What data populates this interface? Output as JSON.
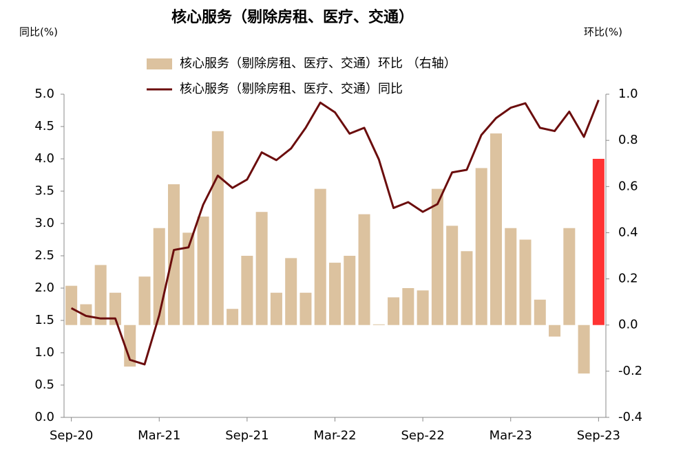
{
  "chart_data": {
    "type": "bar-line",
    "title": "核心服务（剔除房租、医疗、交通）",
    "ylabel": "同比(%)",
    "y2label": "环比(%)",
    "categories": [
      "Sep-20",
      null,
      null,
      null,
      null,
      null,
      "Mar-21",
      null,
      null,
      null,
      null,
      null,
      "Sep-21",
      null,
      null,
      null,
      null,
      null,
      "Mar-22",
      null,
      null,
      null,
      null,
      null,
      "Sep-22",
      null,
      null,
      null,
      null,
      null,
      "Mar-23",
      null,
      null,
      null,
      null,
      null,
      "Sep-23"
    ],
    "series": [
      {
        "name": "核心服务（剔除房租、医疗、交通）环比 （右轴）",
        "type": "bar",
        "axis": "y2",
        "colors": [
          "#dcc29f",
          "#dcc29f",
          "#dcc29f",
          "#dcc29f",
          "#dcc29f",
          "#dcc29f",
          "#dcc29f",
          "#dcc29f",
          "#dcc29f",
          "#dcc29f",
          "#dcc29f",
          "#dcc29f",
          "#dcc29f",
          "#dcc29f",
          "#dcc29f",
          "#dcc29f",
          "#dcc29f",
          "#dcc29f",
          "#dcc29f",
          "#dcc29f",
          "#dcc29f",
          "#dcc29f",
          "#dcc29f",
          "#dcc29f",
          "#dcc29f",
          "#dcc29f",
          "#dcc29f",
          "#dcc29f",
          "#dcc29f",
          "#dcc29f",
          "#dcc29f",
          "#dcc29f",
          "#dcc29f",
          "#dcc29f",
          "#dcc29f",
          "#dcc29f",
          "#ff3333"
        ],
        "color": "#dcc29f",
        "values": [
          0.17,
          0.09,
          0.26,
          0.14,
          -0.18,
          0.21,
          0.42,
          0.61,
          0.4,
          0.47,
          0.84,
          0.07,
          0.3,
          0.49,
          0.14,
          0.29,
          0.14,
          0.59,
          0.27,
          0.3,
          0.48,
          0.003,
          0.12,
          0.16,
          0.15,
          0.59,
          0.43,
          0.32,
          0.68,
          0.83,
          0.42,
          0.37,
          0.11,
          -0.05,
          0.42,
          -0.21,
          0.72
        ]
      },
      {
        "name": "核心服务（剔除房租、医疗、交通）同比",
        "type": "line",
        "axis": "y",
        "color": "#6b0d0d",
        "values": [
          1.69,
          1.57,
          1.53,
          1.53,
          0.89,
          0.82,
          1.58,
          2.59,
          2.63,
          3.29,
          3.74,
          3.55,
          3.68,
          4.1,
          3.98,
          4.16,
          4.48,
          4.87,
          4.72,
          4.39,
          4.48,
          3.99,
          3.24,
          3.33,
          3.18,
          3.3,
          3.79,
          3.83,
          4.37,
          4.63,
          4.79,
          4.86,
          4.48,
          4.43,
          4.73,
          4.34,
          4.91
        ]
      }
    ],
    "ylim": [
      0,
      5
    ],
    "yticks": [
      {
        "value": 0,
        "label": "0.0"
      },
      0.5,
      {
        "value": 1,
        "label": "1.0"
      },
      1.5,
      {
        "value": 2,
        "label": "2.0"
      },
      2.5,
      {
        "value": 3,
        "label": "3.0"
      },
      3.5,
      {
        "value": 4,
        "label": "4.0"
      },
      4.5,
      {
        "value": 5,
        "label": "5.0"
      }
    ],
    "y2lim": [
      -0.4,
      1.0
    ],
    "y2ticks": [
      -0.4,
      -0.2,
      {
        "value": 0,
        "label": "0.0"
      },
      0.2,
      0.4,
      0.6,
      0.8,
      {
        "value": 1,
        "label": "1.0"
      }
    ],
    "legend": "top"
  }
}
